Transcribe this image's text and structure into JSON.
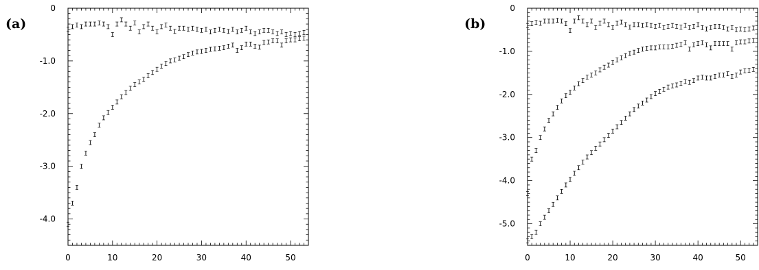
{
  "panels": [
    {
      "label": "(a)"
    },
    {
      "label": "(b)"
    }
  ],
  "chart_data": [
    {
      "type": "scatter",
      "title": "",
      "xlabel": "",
      "ylabel": "",
      "xlim": [
        0,
        54
      ],
      "ylim": [
        -4.5,
        0
      ],
      "x_ticks": [
        0,
        10,
        20,
        30,
        40,
        50
      ],
      "x_tick_labels": [
        "0",
        "10",
        "20",
        "30",
        "40",
        "50"
      ],
      "y_ticks": [
        0,
        -1.0,
        -2.0,
        -3.0,
        -4.0
      ],
      "y_tick_labels": [
        "0",
        "-1.0",
        "-2.0",
        "-3.0",
        "-4.0"
      ],
      "grid": false,
      "series": [
        {
          "x": [
            0,
            1,
            2,
            3,
            4,
            5,
            6,
            7,
            8,
            9,
            10,
            11,
            12,
            13,
            14,
            15,
            16,
            17,
            18,
            19,
            20,
            21,
            22,
            23,
            24,
            25,
            26,
            27,
            28,
            29,
            30,
            31,
            32,
            33,
            34,
            35,
            36,
            37,
            38,
            39,
            40,
            41,
            42,
            43,
            44,
            45,
            46,
            47,
            48,
            49,
            50,
            51,
            52,
            53
          ],
          "values": [
            -0.4,
            -0.35,
            -0.32,
            -0.35,
            -0.3,
            -0.3,
            -0.3,
            -0.28,
            -0.3,
            -0.35,
            -0.5,
            -0.3,
            -0.22,
            -0.3,
            -0.38,
            -0.28,
            -0.45,
            -0.35,
            -0.3,
            -0.38,
            -0.45,
            -0.35,
            -0.32,
            -0.38,
            -0.44,
            -0.38,
            -0.38,
            -0.4,
            -0.38,
            -0.4,
            -0.42,
            -0.4,
            -0.45,
            -0.42,
            -0.4,
            -0.42,
            -0.44,
            -0.4,
            -0.45,
            -0.42,
            -0.38,
            -0.45,
            -0.48,
            -0.45,
            -0.42,
            -0.42,
            -0.45,
            -0.48,
            -0.45,
            -0.5,
            -0.48,
            -0.5,
            -0.48,
            -0.46
          ]
        },
        {
          "x": [
            0,
            1,
            2,
            3,
            4,
            5,
            6,
            7,
            8,
            9,
            10,
            11,
            12,
            13,
            14,
            15,
            16,
            17,
            18,
            19,
            20,
            21,
            22,
            23,
            24,
            25,
            26,
            27,
            28,
            29,
            30,
            31,
            32,
            33,
            34,
            35,
            36,
            37,
            38,
            39,
            40,
            41,
            42,
            43,
            44,
            45,
            46,
            47,
            48,
            49,
            50,
            51,
            52,
            53
          ],
          "values": [
            -4.1,
            -3.7,
            -3.4,
            -3.0,
            -2.75,
            -2.55,
            -2.4,
            -2.22,
            -2.08,
            -1.98,
            -1.88,
            -1.78,
            -1.68,
            -1.6,
            -1.52,
            -1.45,
            -1.4,
            -1.35,
            -1.28,
            -1.22,
            -1.16,
            -1.1,
            -1.05,
            -1.0,
            -0.98,
            -0.95,
            -0.92,
            -0.88,
            -0.85,
            -0.83,
            -0.82,
            -0.8,
            -0.78,
            -0.77,
            -0.76,
            -0.75,
            -0.72,
            -0.7,
            -0.8,
            -0.75,
            -0.68,
            -0.68,
            -0.72,
            -0.74,
            -0.65,
            -0.64,
            -0.62,
            -0.62,
            -0.7,
            -0.62,
            -0.6,
            -0.6,
            -0.58,
            -0.57
          ]
        }
      ]
    },
    {
      "type": "scatter",
      "title": "",
      "xlabel": "",
      "ylabel": "",
      "xlim": [
        0,
        54
      ],
      "ylim": [
        -5.5,
        0
      ],
      "x_ticks": [
        0,
        10,
        20,
        30,
        40,
        50
      ],
      "x_tick_labels": [
        "0",
        "10",
        "20",
        "30",
        "40",
        "50"
      ],
      "y_ticks": [
        0,
        -1.0,
        -2.0,
        -3.0,
        -4.0,
        -5.0
      ],
      "y_tick_labels": [
        "0",
        "-1.0",
        "-2.0",
        "-3.0",
        "-4.0",
        "-5.0"
      ],
      "grid": false,
      "series": [
        {
          "x": [
            0,
            1,
            2,
            3,
            4,
            5,
            6,
            7,
            8,
            9,
            10,
            11,
            12,
            13,
            14,
            15,
            16,
            17,
            18,
            19,
            20,
            21,
            22,
            23,
            24,
            25,
            26,
            27,
            28,
            29,
            30,
            31,
            32,
            33,
            34,
            35,
            36,
            37,
            38,
            39,
            40,
            41,
            42,
            43,
            44,
            45,
            46,
            47,
            48,
            49,
            50,
            51,
            52,
            53
          ],
          "values": [
            -0.4,
            -0.36,
            -0.33,
            -0.35,
            -0.3,
            -0.3,
            -0.3,
            -0.28,
            -0.3,
            -0.36,
            -0.52,
            -0.3,
            -0.22,
            -0.3,
            -0.38,
            -0.3,
            -0.45,
            -0.35,
            -0.3,
            -0.38,
            -0.45,
            -0.35,
            -0.32,
            -0.38,
            -0.44,
            -0.38,
            -0.38,
            -0.4,
            -0.38,
            -0.4,
            -0.42,
            -0.4,
            -0.45,
            -0.42,
            -0.4,
            -0.42,
            -0.44,
            -0.4,
            -0.45,
            -0.42,
            -0.38,
            -0.45,
            -0.48,
            -0.45,
            -0.42,
            -0.42,
            -0.45,
            -0.48,
            -0.45,
            -0.5,
            -0.48,
            -0.5,
            -0.48,
            -0.46
          ]
        },
        {
          "x": [
            0,
            1,
            2,
            3,
            4,
            5,
            6,
            7,
            8,
            9,
            10,
            11,
            12,
            13,
            14,
            15,
            16,
            17,
            18,
            19,
            20,
            21,
            22,
            23,
            24,
            25,
            26,
            27,
            28,
            29,
            30,
            31,
            32,
            33,
            34,
            35,
            36,
            37,
            38,
            39,
            40,
            41,
            42,
            43,
            44,
            45,
            46,
            47,
            48,
            49,
            50,
            51,
            52,
            53
          ],
          "values": [
            -4.3,
            -3.5,
            -3.3,
            -3.0,
            -2.8,
            -2.6,
            -2.45,
            -2.3,
            -2.15,
            -2.03,
            -1.95,
            -1.85,
            -1.75,
            -1.68,
            -1.6,
            -1.55,
            -1.5,
            -1.43,
            -1.37,
            -1.32,
            -1.26,
            -1.2,
            -1.15,
            -1.1,
            -1.05,
            -1.02,
            -0.98,
            -0.95,
            -0.93,
            -0.92,
            -0.92,
            -0.9,
            -0.9,
            -0.9,
            -0.88,
            -0.86,
            -0.84,
            -0.8,
            -0.95,
            -0.85,
            -0.82,
            -0.8,
            -0.85,
            -0.92,
            -0.82,
            -0.82,
            -0.82,
            -0.82,
            -0.95,
            -0.8,
            -0.78,
            -0.78,
            -0.76,
            -0.75
          ]
        },
        {
          "x": [
            0,
            1,
            2,
            3,
            4,
            5,
            6,
            7,
            8,
            9,
            10,
            11,
            12,
            13,
            14,
            15,
            16,
            17,
            18,
            19,
            20,
            21,
            22,
            23,
            24,
            25,
            26,
            27,
            28,
            29,
            30,
            31,
            32,
            33,
            34,
            35,
            36,
            37,
            38,
            39,
            40,
            41,
            42,
            43,
            44,
            45,
            46,
            47,
            48,
            49,
            50,
            51,
            52,
            53
          ],
          "values": [
            -5.4,
            -5.3,
            -5.2,
            -5.0,
            -4.85,
            -4.7,
            -4.55,
            -4.4,
            -4.25,
            -4.1,
            -3.97,
            -3.83,
            -3.7,
            -3.57,
            -3.45,
            -3.35,
            -3.25,
            -3.15,
            -3.05,
            -2.95,
            -2.85,
            -2.75,
            -2.65,
            -2.55,
            -2.45,
            -2.35,
            -2.27,
            -2.2,
            -2.13,
            -2.05,
            -1.98,
            -1.93,
            -1.88,
            -1.83,
            -1.8,
            -1.78,
            -1.74,
            -1.7,
            -1.72,
            -1.68,
            -1.62,
            -1.6,
            -1.62,
            -1.62,
            -1.58,
            -1.55,
            -1.55,
            -1.52,
            -1.58,
            -1.55,
            -1.48,
            -1.45,
            -1.44,
            -1.42
          ]
        }
      ]
    }
  ]
}
